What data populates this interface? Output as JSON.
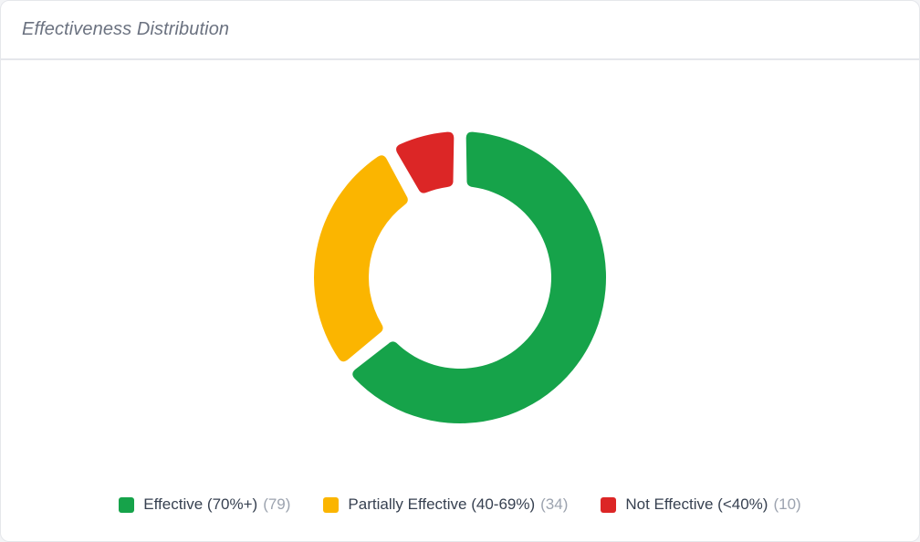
{
  "card": {
    "title": "Effectiveness Distribution"
  },
  "chart_data": {
    "type": "pie",
    "variant": "donut",
    "title": "Effectiveness Distribution",
    "categories": [
      "Effective (70%+)",
      "Partially Effective (40-69%)",
      "Not Effective (<40%)"
    ],
    "values": [
      79,
      34,
      10
    ],
    "colors": [
      "#16a34a",
      "#fbb500",
      "#dc2626"
    ],
    "legend_position": "bottom"
  },
  "legend": [
    {
      "label": "Effective (70%+)",
      "count": "(79)",
      "color": "#16a34a",
      "icon": "legend-square"
    },
    {
      "label": "Partially Effective (40-69%)",
      "count": "(34)",
      "color": "#fbb500",
      "icon": "legend-square"
    },
    {
      "label": "Not Effective (<40%)",
      "count": "(10)",
      "color": "#dc2626",
      "icon": "legend-square"
    }
  ]
}
